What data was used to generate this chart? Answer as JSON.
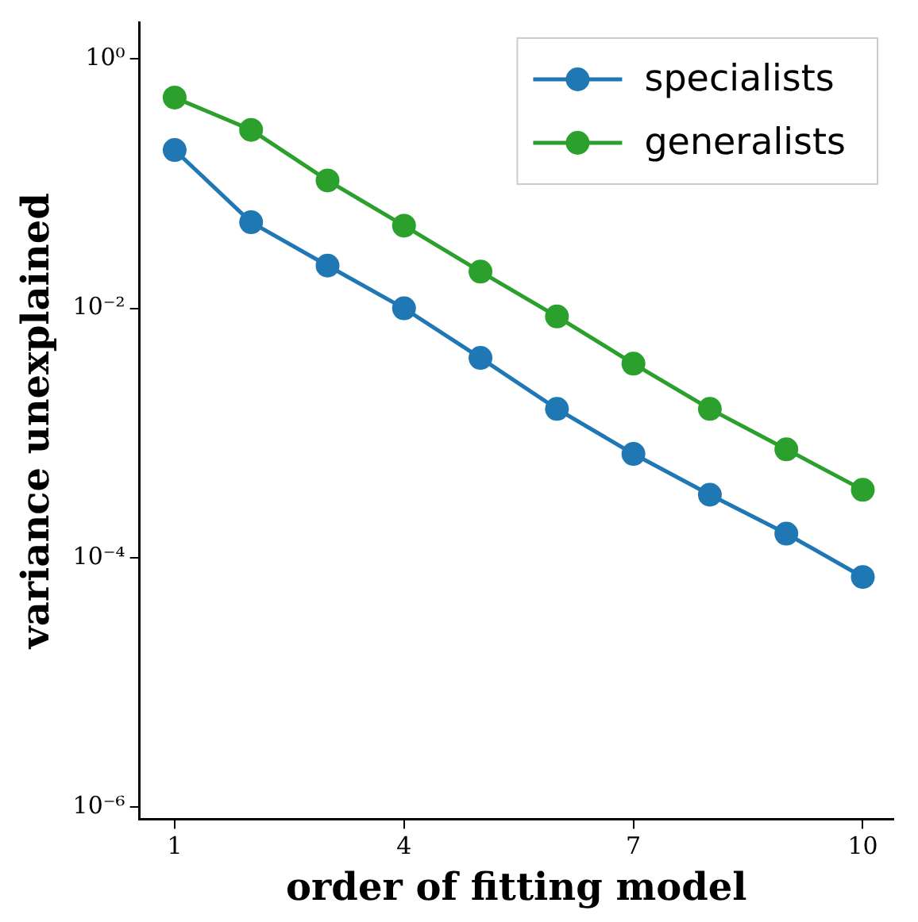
{
  "chart_data": {
    "type": "line",
    "xlabel": "order of fitting model",
    "ylabel": "variance unexplained",
    "log": "y",
    "x": [
      1,
      2,
      3,
      4,
      5,
      6,
      7,
      8,
      9,
      10
    ],
    "series": [
      {
        "name": "specialists",
        "color": "#1f77b4",
        "values": [
          0.186,
          0.049,
          0.022,
          0.01,
          0.004,
          0.00156,
          0.00068,
          0.00032,
          0.000156,
          7e-05
        ]
      },
      {
        "name": "generalists",
        "color": "#2ca02c",
        "values": [
          0.49,
          0.27,
          0.106,
          0.046,
          0.0197,
          0.0086,
          0.0036,
          0.00156,
          0.00074,
          0.00035
        ]
      }
    ],
    "xlim": [
      0.54,
      10.4
    ],
    "xticks": [
      1,
      4,
      7,
      10
    ],
    "ylim": [
      8e-07,
      1.97
    ],
    "yticks": [
      {
        "value": 1,
        "label": "10⁰"
      },
      {
        "value": 0.01,
        "label": "10⁻²"
      },
      {
        "value": 0.0001,
        "label": "10⁻⁴"
      },
      {
        "value": 1e-06,
        "label": "10⁻⁶"
      }
    ],
    "grid": false,
    "legend": "top right",
    "marker": "circle",
    "line_style": "solid"
  }
}
